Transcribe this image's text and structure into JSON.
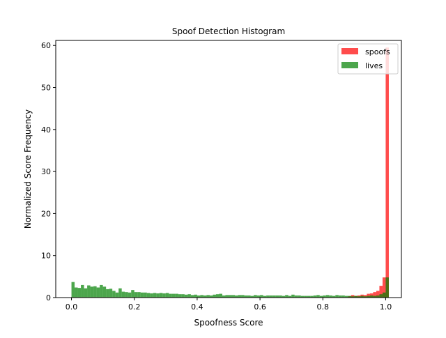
{
  "chart_data": {
    "type": "bar",
    "title": "Spoof Detection Histogram",
    "xlabel": "Spoofness Score",
    "ylabel": "Normalized Score Frequency",
    "xlim": [
      -0.05,
      1.05
    ],
    "ylim": [
      0,
      61.2
    ],
    "xticks": [
      "0.0",
      "0.2",
      "0.4",
      "0.6",
      "0.8",
      "1.0"
    ],
    "yticks": [
      "0",
      "10",
      "20",
      "30",
      "40",
      "50",
      "60"
    ],
    "grid": false,
    "legend_position": "top-right",
    "bin_width": 0.01,
    "bin_start": 0.0,
    "series": [
      {
        "name": "spoofs",
        "color": "#ff0000",
        "alpha": 0.7,
        "values": [
          0.1,
          0.1,
          0.1,
          0.1,
          0.1,
          0.1,
          0.1,
          0.1,
          0.1,
          0.1,
          0.1,
          0.1,
          0.1,
          0.1,
          0.1,
          0.1,
          0.1,
          0.1,
          0.1,
          0.1,
          0.1,
          0.1,
          0.1,
          0.1,
          0.1,
          0.1,
          0.1,
          0.1,
          0.1,
          0.1,
          0.1,
          0.1,
          0.1,
          0.1,
          0.1,
          0.1,
          0.1,
          0.1,
          0.1,
          0.1,
          0.1,
          0.1,
          0.1,
          0.1,
          0.1,
          0.1,
          0.1,
          0.1,
          0.1,
          0.1,
          0.1,
          0.1,
          0.1,
          0.1,
          0.1,
          0.1,
          0.1,
          0.1,
          0.1,
          0.1,
          0.1,
          0.1,
          0.1,
          0.1,
          0.1,
          0.1,
          0.1,
          0.1,
          0.1,
          0.1,
          0.1,
          0.1,
          0.1,
          0.1,
          0.1,
          0.1,
          0.1,
          0.1,
          0.1,
          0.1,
          0.1,
          0.1,
          0.1,
          0.1,
          0.1,
          0.1,
          0.1,
          0.1,
          0.3,
          0.6,
          0.4,
          0.5,
          0.7,
          0.6,
          0.9,
          1.0,
          1.3,
          1.6,
          2.8,
          4.8,
          59.5
        ]
      },
      {
        "name": "lives",
        "color": "#008000",
        "alpha": 0.7,
        "values": [
          3.7,
          2.4,
          2.3,
          3.0,
          2.2,
          2.9,
          2.6,
          2.7,
          2.4,
          3.0,
          2.6,
          2.0,
          2.1,
          1.6,
          1.2,
          2.2,
          1.4,
          1.3,
          1.2,
          1.8,
          1.3,
          1.3,
          1.2,
          1.2,
          1.1,
          1.0,
          1.1,
          1.0,
          1.1,
          1.0,
          1.1,
          0.9,
          0.9,
          0.9,
          0.8,
          0.8,
          0.7,
          0.8,
          0.6,
          0.7,
          0.5,
          0.6,
          0.5,
          0.6,
          0.5,
          0.7,
          0.8,
          0.9,
          0.5,
          0.6,
          0.6,
          0.6,
          0.5,
          0.6,
          0.6,
          0.5,
          0.5,
          0.4,
          0.6,
          0.5,
          0.6,
          0.4,
          0.5,
          0.5,
          0.5,
          0.5,
          0.5,
          0.4,
          0.6,
          0.4,
          0.7,
          0.5,
          0.5,
          0.4,
          0.4,
          0.4,
          0.4,
          0.5,
          0.6,
          0.4,
          0.5,
          0.6,
          0.5,
          0.4,
          0.6,
          0.5,
          0.5,
          0.4,
          0.4,
          0.3,
          0.4,
          0.3,
          0.4,
          0.3,
          0.4,
          0.5,
          0.4,
          0.5,
          0.8,
          1.2,
          4.8
        ]
      }
    ]
  }
}
